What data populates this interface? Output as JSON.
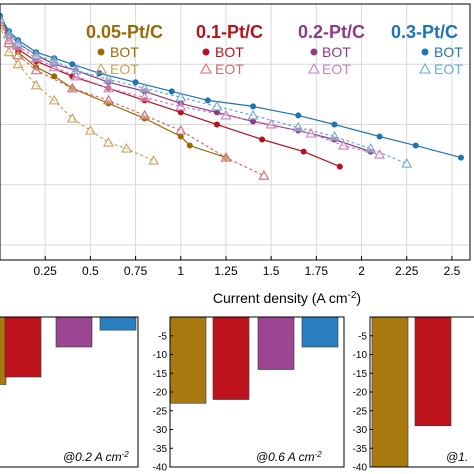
{
  "chart_data": [
    {
      "type": "line",
      "xlabel": "Current density (A cm",
      "xlabel_sup": "-2",
      "xlabel_close": ")",
      "xlim": [
        0,
        2.6
      ],
      "x_ticks": [
        "0.25",
        "0.5",
        "0.75",
        "1",
        "1.25",
        "1.5",
        "1.75",
        "2",
        "2.25",
        "2.5"
      ],
      "x_tick_values": [
        0.25,
        0.5,
        0.75,
        1,
        1.25,
        1.5,
        1.75,
        2,
        2.25,
        2.5
      ],
      "y_gridlines": [
        0.2,
        0.4,
        0.6,
        0.8
      ],
      "ylim": [
        0.15,
        1.0
      ],
      "grid": true,
      "legend": [
        {
          "name": "0.05-Pt/C",
          "bot": "BOT",
          "eot": "EOT",
          "color": "#9a6a06"
        },
        {
          "name": "0.1-Pt/C",
          "bot": "BOT",
          "eot": "EOT",
          "color": "#b5121b"
        },
        {
          "name": "0.2-Pt/C",
          "bot": "BOT",
          "eot": "EOT",
          "color": "#8e3b84"
        },
        {
          "name": "0.3-Pt/C",
          "bot": "BOT",
          "eot": "EOT",
          "color": "#1e74b4"
        }
      ],
      "series": [
        {
          "name": "0.05-Pt/C BOT",
          "color": "#9a6a06",
          "marker": "circle",
          "dashed": false,
          "x": [
            0,
            0.05,
            0.1,
            0.2,
            0.3,
            0.4,
            0.6,
            0.8,
            1.0,
            1.05,
            1.25
          ],
          "y": [
            0.95,
            0.88,
            0.84,
            0.79,
            0.76,
            0.72,
            0.67,
            0.62,
            0.56,
            0.53,
            0.49
          ]
        },
        {
          "name": "0.05-Pt/C EOT",
          "color": "#c9a35a",
          "marker": "triangle",
          "dashed": true,
          "x": [
            0,
            0.05,
            0.1,
            0.2,
            0.3,
            0.4,
            0.5,
            0.6,
            0.7,
            0.85
          ],
          "y": [
            0.93,
            0.84,
            0.8,
            0.73,
            0.68,
            0.62,
            0.58,
            0.54,
            0.52,
            0.48
          ]
        },
        {
          "name": "0.1-Pt/C BOT",
          "color": "#b5121b",
          "marker": "circle",
          "dashed": false,
          "x": [
            0,
            0.05,
            0.1,
            0.2,
            0.4,
            0.6,
            0.8,
            1.0,
            1.2,
            1.45,
            1.68,
            1.88
          ],
          "y": [
            0.95,
            0.89,
            0.85,
            0.81,
            0.76,
            0.72,
            0.68,
            0.64,
            0.6,
            0.55,
            0.51,
            0.46
          ]
        },
        {
          "name": "0.1-Pt/C EOT",
          "color": "#cf6b70",
          "marker": "triangle",
          "dashed": true,
          "x": [
            0,
            0.05,
            0.1,
            0.2,
            0.4,
            0.6,
            0.8,
            1.0,
            1.25,
            1.46
          ],
          "y": [
            0.94,
            0.87,
            0.83,
            0.78,
            0.72,
            0.68,
            0.63,
            0.58,
            0.49,
            0.43
          ]
        },
        {
          "name": "0.2-Pt/C BOT",
          "color": "#8e3b84",
          "marker": "circle",
          "dashed": false,
          "x": [
            0,
            0.05,
            0.1,
            0.2,
            0.3,
            0.42,
            0.6,
            0.8,
            1.0,
            1.2,
            1.4,
            1.65,
            1.85,
            2.05
          ],
          "y": [
            0.96,
            0.9,
            0.87,
            0.83,
            0.8,
            0.78,
            0.74,
            0.71,
            0.67,
            0.64,
            0.61,
            0.58,
            0.55,
            0.51
          ]
        },
        {
          "name": "0.2-Pt/C EOT",
          "color": "#c97fc2",
          "marker": "triangle",
          "dashed": true,
          "x": [
            0,
            0.05,
            0.1,
            0.2,
            0.3,
            0.42,
            0.6,
            0.8,
            1.0,
            1.25,
            1.5,
            1.72,
            1.9,
            2.1
          ],
          "y": [
            0.95,
            0.88,
            0.86,
            0.82,
            0.79,
            0.76,
            0.72,
            0.69,
            0.66,
            0.63,
            0.6,
            0.57,
            0.53,
            0.5
          ]
        },
        {
          "name": "0.3-Pt/C BOT",
          "color": "#1e74b4",
          "marker": "circle",
          "dashed": false,
          "x": [
            0,
            0.05,
            0.1,
            0.2,
            0.3,
            0.4,
            0.55,
            0.75,
            0.95,
            1.15,
            1.4,
            1.65,
            1.85,
            2.1,
            2.3,
            2.55
          ],
          "y": [
            0.96,
            0.91,
            0.88,
            0.84,
            0.82,
            0.8,
            0.77,
            0.74,
            0.71,
            0.68,
            0.66,
            0.63,
            0.6,
            0.56,
            0.53,
            0.49
          ]
        },
        {
          "name": "0.3-Pt/C EOT",
          "color": "#6fa8d6",
          "marker": "triangle",
          "dashed": true,
          "x": [
            0,
            0.05,
            0.1,
            0.2,
            0.3,
            0.42,
            0.6,
            0.8,
            1.0,
            1.2,
            1.4,
            1.65,
            1.85,
            2.05,
            2.25
          ],
          "y": [
            0.95,
            0.9,
            0.87,
            0.83,
            0.81,
            0.78,
            0.75,
            0.72,
            0.69,
            0.66,
            0.63,
            0.59,
            0.56,
            0.52,
            0.47
          ]
        }
      ]
    },
    {
      "type": "bar",
      "annotation": "@0.2 A cm",
      "annotation_sup": "-2",
      "ylim": [
        -40,
        0
      ],
      "y_ticks": [],
      "categories": [
        "0.05-Pt/C",
        "0.1-Pt/C",
        "0.2-Pt/C",
        "0.3-Pt/C"
      ],
      "values": [
        -18,
        -16,
        -8,
        -3.5
      ]
    },
    {
      "type": "bar",
      "annotation": "@0.6 A cm",
      "annotation_sup": "-2",
      "ylim": [
        -40,
        0
      ],
      "y_ticks": [
        "-5",
        "-10",
        "-15",
        "-20",
        "-25",
        "-30",
        "-35",
        "-40"
      ],
      "y_tick_values": [
        -5,
        -10,
        -15,
        -20,
        -25,
        -30,
        -35,
        -40
      ],
      "categories": [
        "0.05-Pt/C",
        "0.1-Pt/C",
        "0.2-Pt/C",
        "0.3-Pt/C"
      ],
      "values": [
        -23,
        -22,
        -14,
        -8
      ]
    },
    {
      "type": "bar",
      "annotation": "@1.",
      "ylim": [
        -40,
        0
      ],
      "y_ticks": [
        "-5",
        "-10",
        "-15",
        "-20",
        "-25",
        "-30",
        "-35",
        "-40"
      ],
      "y_tick_values": [
        -5,
        -10,
        -15,
        -20,
        -25,
        -30,
        -35,
        -40
      ],
      "categories": [
        "0.05-Pt/C",
        "0.1-Pt/C"
      ],
      "values": [
        -40,
        -29
      ]
    }
  ],
  "bar_colors": [
    "#a8790f",
    "#be121c",
    "#9c4592",
    "#2a7fc0"
  ]
}
